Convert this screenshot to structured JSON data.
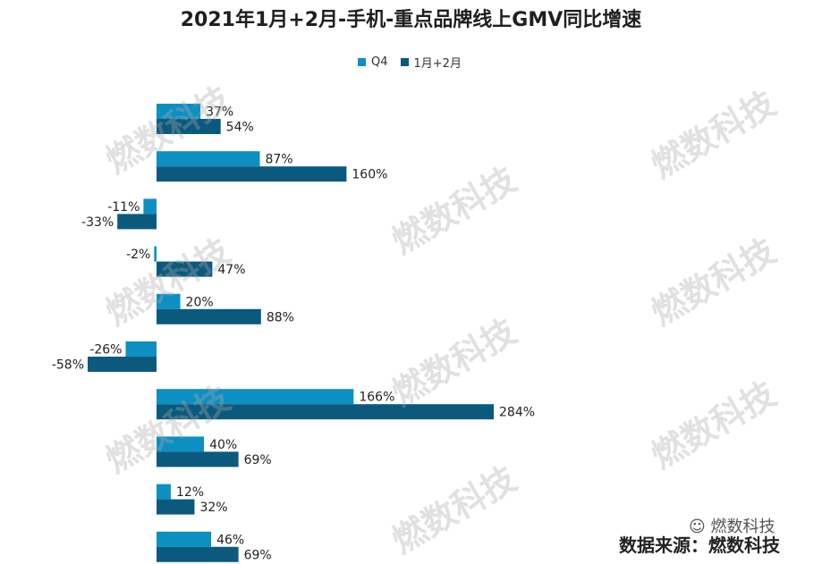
{
  "chart_data": {
    "type": "bar",
    "orientation": "horizontal",
    "title": "2021年1月+2月-手机-重点品牌线上GMV同比增速",
    "categories": [
      "",
      "",
      "",
      "",
      "",
      "",
      "",
      "",
      "",
      ""
    ],
    "series": [
      {
        "name": "Q4",
        "color": "#0e8fc2",
        "values": [
          37,
          87,
          -11,
          -2,
          20,
          -26,
          166,
          40,
          12,
          46
        ],
        "labels": [
          "37%",
          "87%",
          "-11%",
          "-2%",
          "20%",
          "-26%",
          "166%",
          "40%",
          "12%",
          "46%"
        ]
      },
      {
        "name": "1月+2月",
        "color": "#0b5a7e",
        "values": [
          54,
          160,
          -33,
          47,
          88,
          -58,
          284,
          69,
          32,
          69
        ],
        "labels": [
          "54%",
          "160%",
          "-33%",
          "47%",
          "88%",
          "-58%",
          "284%",
          "69%",
          "32%",
          "69%"
        ]
      }
    ],
    "value_unit": "%",
    "legend_position": "top-center",
    "grid": false
  },
  "legend": {
    "q4": "Q4",
    "jan_feb": "1月+2月"
  },
  "source_note": "数据来源：燃数科技",
  "wechat_note": "燃数科技",
  "watermark": "燃数科技"
}
